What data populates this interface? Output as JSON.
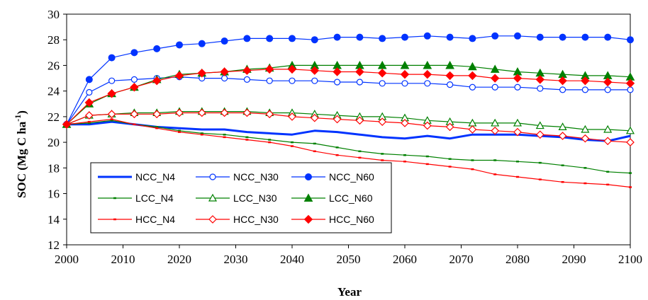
{
  "chart_data": {
    "type": "line",
    "xlabel": "Year",
    "ylabel": "SOC (Mg C ha",
    "ylabel_sup": "-1",
    "ylabel_close": ")",
    "xlim": [
      2000,
      2100
    ],
    "ylim": [
      12,
      30
    ],
    "x_ticks": [
      "2000",
      "2010",
      "2020",
      "2030",
      "2040",
      "2050",
      "2060",
      "2070",
      "2080",
      "2090",
      "2100"
    ],
    "y_ticks": [
      "12",
      "14",
      "16",
      "18",
      "20",
      "22",
      "24",
      "26",
      "28",
      "30"
    ],
    "grid": false,
    "legend_position": "bottom-left",
    "x": [
      2000,
      2004,
      2008,
      2012,
      2016,
      2020,
      2024,
      2028,
      2032,
      2036,
      2040,
      2044,
      2048,
      2052,
      2056,
      2060,
      2064,
      2068,
      2072,
      2076,
      2080,
      2084,
      2088,
      2092,
      2096,
      2100
    ],
    "series": [
      {
        "name": "NCC_N4",
        "color": "#0033ff",
        "marker": "none",
        "width": 3,
        "values": [
          21.4,
          21.4,
          21.6,
          21.4,
          21.2,
          21.1,
          21.0,
          21.0,
          20.8,
          20.7,
          20.6,
          20.9,
          20.8,
          20.6,
          20.4,
          20.3,
          20.5,
          20.3,
          20.6,
          20.6,
          20.6,
          20.5,
          20.4,
          20.2,
          20.1,
          20.5
        ]
      },
      {
        "name": "NCC_N30",
        "color": "#0033ff",
        "marker": "circle-open",
        "width": 1.2,
        "values": [
          21.4,
          23.9,
          24.8,
          24.9,
          25.0,
          25.1,
          25.0,
          25.0,
          24.9,
          24.8,
          24.8,
          24.8,
          24.7,
          24.7,
          24.6,
          24.6,
          24.6,
          24.5,
          24.3,
          24.3,
          24.3,
          24.2,
          24.1,
          24.1,
          24.1,
          24.1
        ]
      },
      {
        "name": "NCC_N60",
        "color": "#0033ff",
        "marker": "circle-filled",
        "width": 1.2,
        "values": [
          21.4,
          24.9,
          26.6,
          27.0,
          27.3,
          27.6,
          27.7,
          27.9,
          28.1,
          28.1,
          28.1,
          28.0,
          28.2,
          28.2,
          28.1,
          28.2,
          28.3,
          28.2,
          28.1,
          28.3,
          28.3,
          28.2,
          28.2,
          28.2,
          28.2,
          28.0
        ]
      },
      {
        "name": "LCC_N4",
        "color": "#008000",
        "marker": "dash",
        "width": 1.2,
        "values": [
          21.4,
          21.5,
          21.7,
          21.4,
          21.2,
          20.9,
          20.7,
          20.6,
          20.4,
          20.2,
          20.0,
          19.9,
          19.6,
          19.3,
          19.1,
          19.0,
          18.9,
          18.7,
          18.6,
          18.6,
          18.5,
          18.4,
          18.2,
          18.0,
          17.7,
          17.6
        ]
      },
      {
        "name": "LCC_N30",
        "color": "#008000",
        "marker": "triangle-open",
        "width": 1.2,
        "values": [
          21.4,
          22.1,
          22.2,
          22.3,
          22.3,
          22.4,
          22.4,
          22.4,
          22.4,
          22.3,
          22.3,
          22.2,
          22.1,
          22.0,
          22.0,
          21.9,
          21.7,
          21.6,
          21.5,
          21.5,
          21.5,
          21.3,
          21.2,
          21.0,
          21.0,
          20.9
        ]
      },
      {
        "name": "LCC_N60",
        "color": "#008000",
        "marker": "triangle-filled",
        "width": 1.2,
        "values": [
          21.4,
          23.0,
          23.8,
          24.3,
          24.9,
          25.3,
          25.4,
          25.5,
          25.7,
          25.8,
          26.0,
          26.0,
          26.0,
          26.0,
          26.0,
          26.0,
          26.0,
          26.0,
          25.9,
          25.7,
          25.5,
          25.4,
          25.3,
          25.2,
          25.2,
          25.1
        ]
      },
      {
        "name": "HCC_N4",
        "color": "#ff0000",
        "marker": "dash",
        "width": 1.2,
        "values": [
          21.4,
          21.6,
          21.8,
          21.4,
          21.1,
          20.8,
          20.6,
          20.4,
          20.2,
          20.0,
          19.7,
          19.3,
          19.0,
          18.8,
          18.6,
          18.5,
          18.3,
          18.1,
          17.9,
          17.5,
          17.3,
          17.1,
          16.9,
          16.8,
          16.7,
          16.5
        ]
      },
      {
        "name": "HCC_N30",
        "color": "#ff0000",
        "marker": "diamond-open",
        "width": 1.2,
        "values": [
          21.4,
          22.1,
          22.2,
          22.2,
          22.2,
          22.3,
          22.3,
          22.3,
          22.3,
          22.2,
          22.0,
          21.9,
          21.8,
          21.7,
          21.6,
          21.5,
          21.3,
          21.2,
          21.0,
          20.9,
          20.8,
          20.6,
          20.5,
          20.3,
          20.1,
          20.0
        ]
      },
      {
        "name": "HCC_N60",
        "color": "#ff0000",
        "marker": "diamond-filled",
        "width": 1.2,
        "values": [
          21.4,
          23.1,
          23.8,
          24.3,
          24.8,
          25.2,
          25.4,
          25.5,
          25.6,
          25.7,
          25.7,
          25.6,
          25.5,
          25.5,
          25.4,
          25.3,
          25.3,
          25.2,
          25.2,
          25.0,
          25.0,
          24.9,
          24.8,
          24.8,
          24.7,
          24.6
        ]
      }
    ]
  }
}
